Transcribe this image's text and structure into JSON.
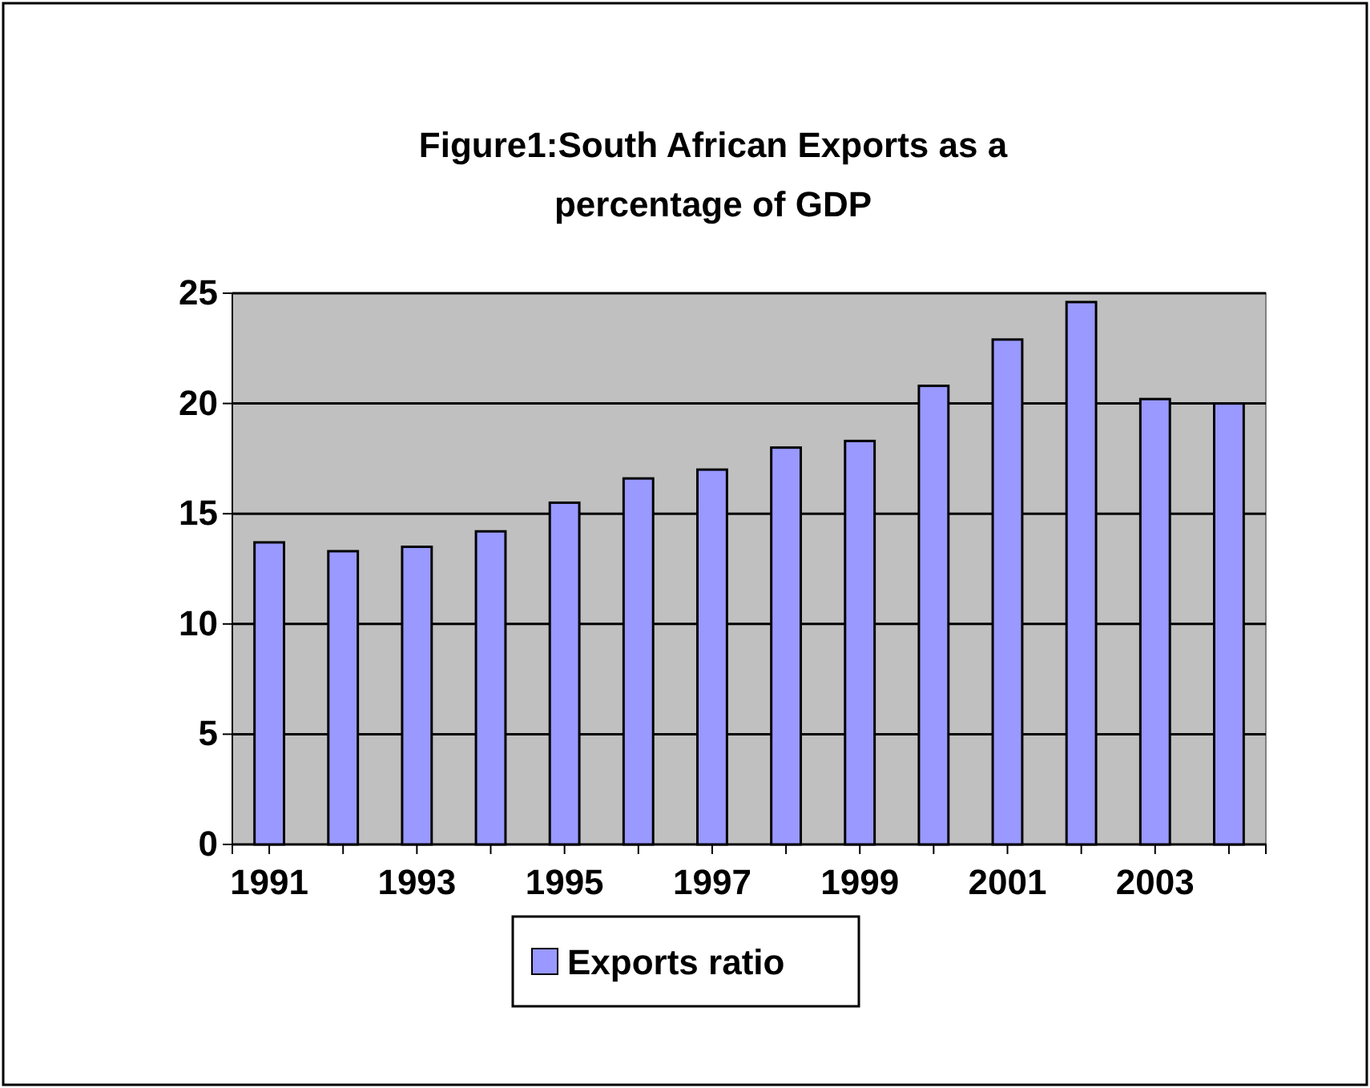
{
  "chart_data": {
    "type": "bar",
    "title": "Figure1:South African Exports as a percentage of GDP",
    "categories": [
      "1991",
      null,
      "1993",
      null,
      "1995",
      null,
      "1997",
      null,
      "1999",
      null,
      "2001",
      null,
      "2003",
      null
    ],
    "series": [
      {
        "name": "Exports ratio",
        "color": "#9999ff",
        "values": [
          13.7,
          13.3,
          13.5,
          14.2,
          15.5,
          16.6,
          17.0,
          18.0,
          18.3,
          20.8,
          22.9,
          24.6,
          20.2,
          20.0
        ]
      }
    ],
    "ylim": [
      0,
      25
    ],
    "yticks": [
      0,
      5,
      10,
      15,
      20,
      25
    ],
    "grid": "y",
    "legend": "bottom"
  }
}
